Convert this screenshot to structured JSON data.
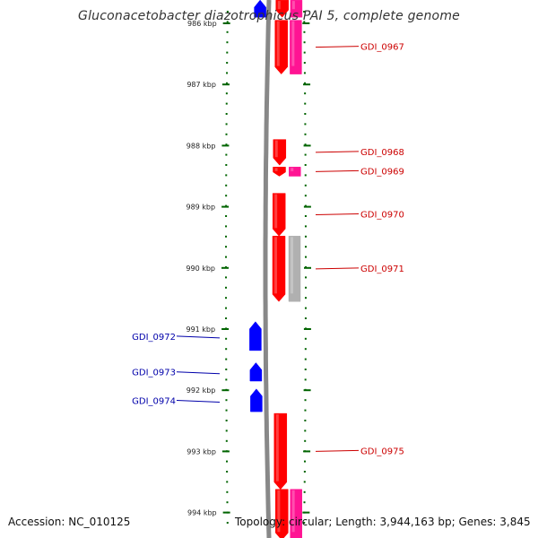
{
  "title": "Gluconacetobacter diazotrophicus PAI 5, complete genome",
  "accession": "Accession: NC_010125",
  "topology": "Topology: circular; Length: 3,944,163 bp; Genes: 3,845",
  "colors": {
    "forward_gene": "#ff0000",
    "forward_alt": "#ff1493",
    "reverse_gene": "#0000ff",
    "pseudo_gene": "#b0b0b0",
    "backbone": "#888888",
    "tick": "#006400",
    "label_forward": "#cc0000",
    "label_reverse": "#0000aa"
  },
  "ticks": [
    {
      "label": "986 kbp",
      "pos": 986
    },
    {
      "label": "987 kbp",
      "pos": 987
    },
    {
      "label": "988 kbp",
      "pos": 988
    },
    {
      "label": "989 kbp",
      "pos": 989
    },
    {
      "label": "990 kbp",
      "pos": 990
    },
    {
      "label": "991 kbp",
      "pos": 991
    },
    {
      "label": "992 kbp",
      "pos": 992
    },
    {
      "label": "993 kbp",
      "pos": 993
    },
    {
      "label": "994 kbp",
      "pos": 994
    }
  ],
  "genes": [
    {
      "track": "forward",
      "start": 985.62,
      "end": 985.9,
      "color": "red"
    },
    {
      "track": "forward2",
      "start": 985.62,
      "end": 985.9,
      "color": "pink"
    },
    {
      "track": "reverse",
      "start": 985.62,
      "end": 985.9,
      "color": "blue"
    },
    {
      "track": "forward",
      "start": 985.95,
      "end": 986.83,
      "label": "GDI_0967",
      "color": "red"
    },
    {
      "track": "forward2",
      "start": 985.95,
      "end": 986.83,
      "color": "pink"
    },
    {
      "track": "forward",
      "start": 987.9,
      "end": 988.32,
      "label": "GDI_0968",
      "color": "red"
    },
    {
      "track": "forward",
      "start": 988.35,
      "end": 988.5,
      "label": "GDI_0969",
      "color": "red"
    },
    {
      "track": "forward2",
      "start": 988.35,
      "end": 988.5,
      "color": "pink"
    },
    {
      "track": "forward",
      "start": 988.78,
      "end": 989.48,
      "label": "GDI_0970",
      "color": "red"
    },
    {
      "track": "forward",
      "start": 989.48,
      "end": 990.55,
      "label": "GDI_0971",
      "color": "red"
    },
    {
      "track": "forward2",
      "start": 989.48,
      "end": 990.55,
      "color": "grey"
    },
    {
      "track": "reverse",
      "start": 990.88,
      "end": 991.35,
      "label": "GDI_0972",
      "color": "blue"
    },
    {
      "track": "reverse",
      "start": 991.55,
      "end": 991.85,
      "label": "GDI_0973",
      "color": "blue"
    },
    {
      "track": "reverse",
      "start": 991.98,
      "end": 992.35,
      "label": "GDI_0974",
      "color": "blue"
    },
    {
      "track": "forward",
      "start": 992.38,
      "end": 993.62,
      "label": "GDI_0975",
      "color": "red"
    },
    {
      "track": "forward",
      "start": 993.62,
      "end": 994.45,
      "color": "red"
    },
    {
      "track": "forward2",
      "start": 993.62,
      "end": 994.45,
      "color": "pink"
    }
  ]
}
